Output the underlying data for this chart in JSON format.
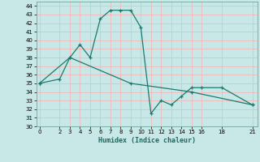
{
  "line1_x": [
    0,
    2,
    3,
    4,
    5,
    6,
    7,
    8,
    9,
    10,
    11,
    12,
    13,
    14,
    15,
    16,
    18,
    21
  ],
  "line1_y": [
    35.0,
    35.5,
    38.0,
    39.5,
    38.0,
    42.5,
    43.5,
    43.5,
    43.5,
    41.5,
    31.5,
    33.0,
    32.5,
    33.5,
    34.5,
    34.5,
    34.5,
    32.5
  ],
  "line2_x": [
    0,
    3,
    9,
    15,
    21
  ],
  "line2_y": [
    35.0,
    38.0,
    35.0,
    34.0,
    32.5
  ],
  "line_color": "#1a7a6e",
  "bg_color": "#c8e8e8",
  "grid_color": "#f0b8b8",
  "xlabel": "Humidex (Indice chaleur)",
  "ylim": [
    30,
    44.5
  ],
  "xlim": [
    -0.3,
    21.5
  ],
  "yticks": [
    30,
    31,
    32,
    33,
    34,
    35,
    36,
    37,
    38,
    39,
    40,
    41,
    42,
    43,
    44
  ],
  "xticks": [
    0,
    2,
    3,
    4,
    5,
    6,
    7,
    8,
    9,
    10,
    11,
    12,
    13,
    14,
    15,
    16,
    18,
    21
  ]
}
